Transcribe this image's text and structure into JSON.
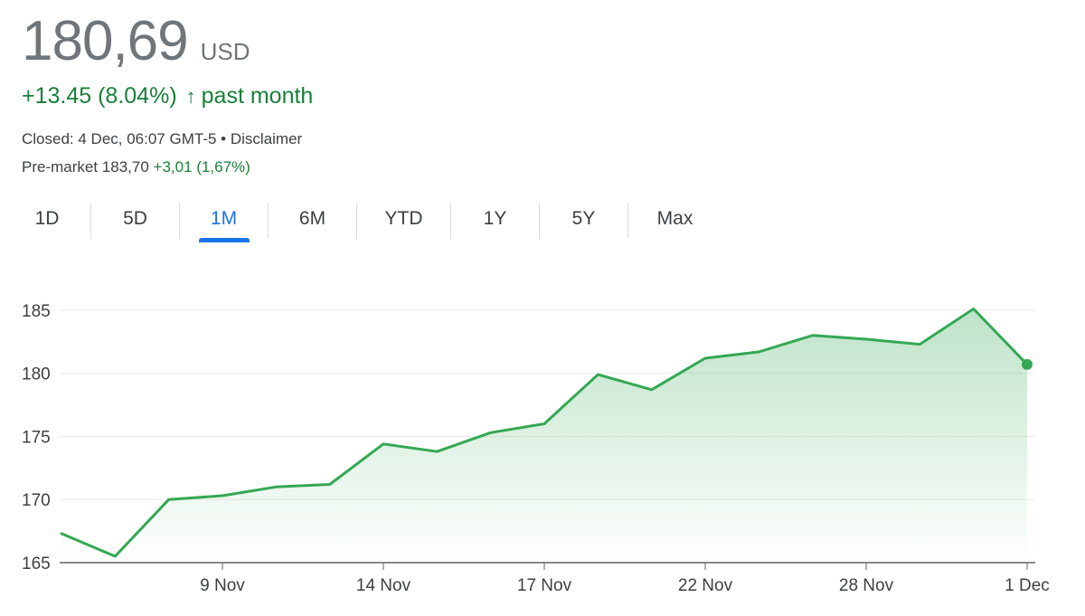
{
  "quote": {
    "price": "180,69",
    "currency": "USD",
    "change": "+13.45 (8.04%)",
    "change_arrow_icon": "arrow-up-icon",
    "change_period": "past month",
    "closed_text": "Closed: 4 Dec, 06:07 GMT-5 •",
    "disclaimer": "Disclaimer",
    "premarket_label": "Pre-market 183,70",
    "premarket_change": "+3,01 (1,67%)"
  },
  "tabs": [
    {
      "label": "1D",
      "active": false
    },
    {
      "label": "5D",
      "active": false
    },
    {
      "label": "1M",
      "active": true
    },
    {
      "label": "6M",
      "active": false
    },
    {
      "label": "YTD",
      "active": false
    },
    {
      "label": "1Y",
      "active": false
    },
    {
      "label": "5Y",
      "active": false
    },
    {
      "label": "Max",
      "active": false
    }
  ],
  "colors": {
    "line": "#34a853",
    "positive_text": "#188038",
    "active_tab": "#1a73e8"
  },
  "chart_data": {
    "type": "area",
    "x_tick_labels": [
      "9 Nov",
      "14 Nov",
      "17 Nov",
      "22 Nov",
      "28 Nov",
      "1 Dec"
    ],
    "x_tick_index": [
      3,
      6,
      9,
      12,
      15,
      18
    ],
    "values": [
      167.3,
      165.5,
      170.0,
      170.3,
      171.0,
      171.2,
      174.4,
      173.8,
      175.3,
      176.0,
      179.9,
      178.7,
      181.2,
      181.7,
      183.0,
      182.7,
      182.3,
      185.1,
      180.7
    ],
    "y_ticks": [
      165,
      170,
      175,
      180,
      185
    ],
    "ylim": [
      165,
      186.5
    ],
    "grid": true,
    "last_point_marker": true
  }
}
